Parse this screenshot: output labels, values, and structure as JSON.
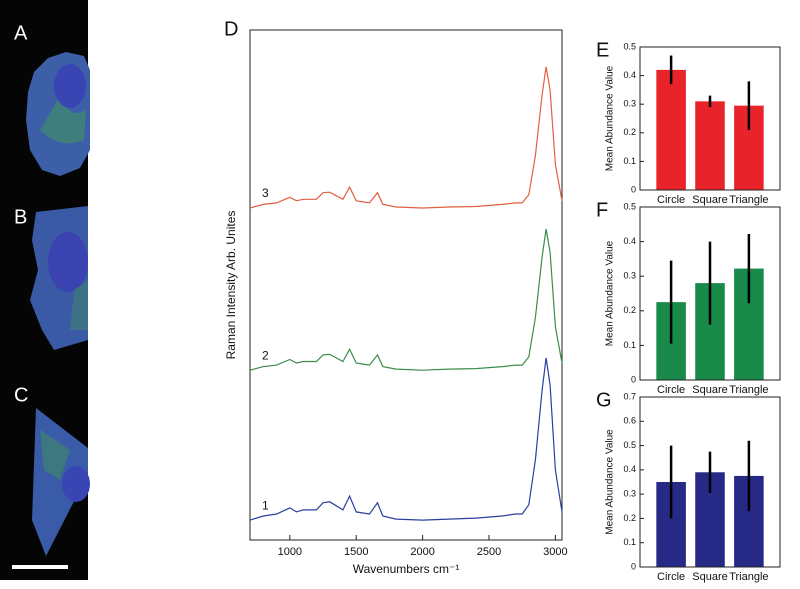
{
  "images": [
    {
      "label": "A"
    },
    {
      "label": "B"
    },
    {
      "label": "C"
    }
  ],
  "chart_data": [
    {
      "type": "line",
      "panel": "D",
      "x_label": "Wavenumbers cm⁻¹",
      "y_label": "Raman Intensity Arb. Unites",
      "x": [
        700,
        800,
        900,
        1000,
        1050,
        1100,
        1200,
        1250,
        1300,
        1350,
        1400,
        1450,
        1500,
        1550,
        1600,
        1660,
        1700,
        1800,
        2000,
        2200,
        2400,
        2600,
        2700,
        2750,
        2800,
        2850,
        2900,
        2930,
        2960,
        3000,
        3050
      ],
      "xlim": [
        700,
        3050
      ],
      "xticks": [
        1000,
        1500,
        2000,
        2500,
        3000
      ],
      "ylim": [
        0,
        100
      ],
      "series": [
        {
          "name": "1",
          "color": "#2a3f9e",
          "values": [
            3.9,
            4.7,
            5.1,
            6.3,
            5.5,
            5.9,
            5.9,
            7.3,
            7.5,
            6.7,
            5.9,
            8.6,
            5.5,
            5.3,
            5.1,
            7.3,
            4.7,
            4.1,
            3.9,
            4.1,
            4.3,
            4.7,
            5.1,
            5.1,
            6.9,
            15.7,
            29.4,
            35.7,
            30.4,
            13.7,
            5.5
          ]
        },
        {
          "name": "2",
          "color": "#3c8c4a",
          "values": [
            33.3,
            34.0,
            34.3,
            35.4,
            34.7,
            35.0,
            35.0,
            36.3,
            36.4,
            35.7,
            35.0,
            37.4,
            34.7,
            34.5,
            34.3,
            36.3,
            34.0,
            33.5,
            33.3,
            33.5,
            33.6,
            34.0,
            34.3,
            34.3,
            35.9,
            43.6,
            55.5,
            61.0,
            56.4,
            41.8,
            34.7
          ]
        },
        {
          "name": "3",
          "color": "#e0603f",
          "values": [
            65.1,
            65.8,
            66.1,
            67.2,
            66.5,
            66.8,
            66.8,
            68.1,
            68.2,
            67.5,
            66.8,
            69.2,
            66.5,
            66.3,
            66.1,
            68.1,
            65.8,
            65.3,
            65.1,
            65.3,
            65.4,
            65.8,
            66.1,
            66.1,
            67.7,
            75.4,
            87.3,
            92.8,
            88.2,
            73.6,
            66.5
          ]
        }
      ]
    },
    {
      "type": "bar",
      "panel": "E",
      "y_label": "Mean Abundance Value",
      "categories": [
        "Circle",
        "Square",
        "Triangle"
      ],
      "values": [
        0.42,
        0.31,
        0.295
      ],
      "errors": [
        0.05,
        0.02,
        0.085
      ],
      "color": "#e8242a",
      "ylim": [
        0,
        0.5
      ],
      "yticks": [
        0,
        0.1,
        0.2,
        0.3,
        0.4,
        0.5
      ]
    },
    {
      "type": "bar",
      "panel": "F",
      "y_label": "Mean Abundance Value",
      "categories": [
        "Circle",
        "Square",
        "Triangle"
      ],
      "values": [
        0.225,
        0.28,
        0.322
      ],
      "errors": [
        0.12,
        0.12,
        0.1
      ],
      "color": "#1a8a4a",
      "ylim": [
        0,
        0.5
      ],
      "yticks": [
        0,
        0.1,
        0.2,
        0.3,
        0.4,
        0.5
      ]
    },
    {
      "type": "bar",
      "panel": "G",
      "y_label": "Mean Abundance Value",
      "categories": [
        "Circle",
        "Square",
        "Triangle"
      ],
      "values": [
        0.35,
        0.39,
        0.375
      ],
      "errors": [
        0.15,
        0.085,
        0.145
      ],
      "color": "#262a86",
      "ylim": [
        0,
        0.7
      ],
      "yticks": [
        0,
        0.1,
        0.2,
        0.3,
        0.4,
        0.5,
        0.6,
        0.7
      ]
    }
  ]
}
